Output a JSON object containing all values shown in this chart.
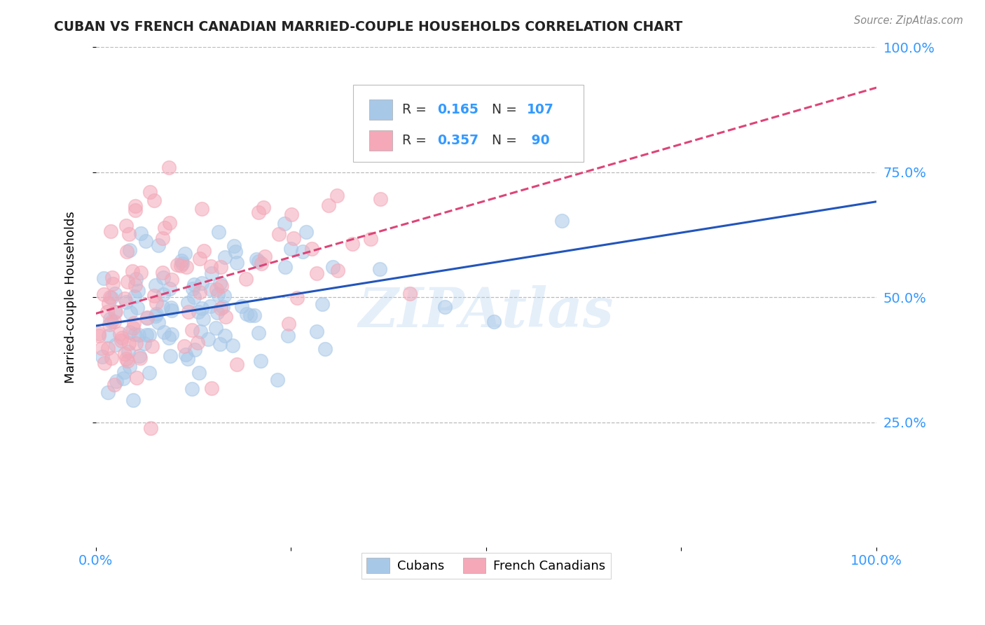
{
  "title": "CUBAN VS FRENCH CANADIAN MARRIED-COUPLE HOUSEHOLDS CORRELATION CHART",
  "source": "Source: ZipAtlas.com",
  "ylabel": "Married-couple Households",
  "cubans_color": "#a8c8e8",
  "french_color": "#f4a8b8",
  "cubans_line_color": "#2255bb",
  "french_line_color": "#dd4477",
  "R_cubans": 0.165,
  "N_cubans": 107,
  "R_french": 0.357,
  "N_french": 90,
  "background_color": "#ffffff",
  "grid_color": "#bbbbbb",
  "title_color": "#222222",
  "source_color": "#888888",
  "tick_color": "#3399ff",
  "legend_label_color": "#3399ff"
}
